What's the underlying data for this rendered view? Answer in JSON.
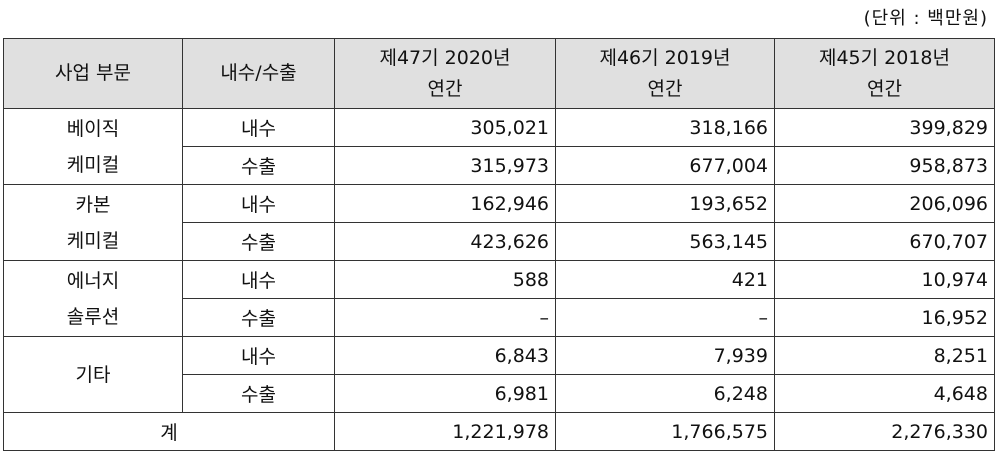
{
  "unit_note": "(단위 : 백만원)",
  "headers": {
    "segment": "사업 부문",
    "flow": "내수/수출",
    "periods": [
      {
        "line1": "제47기 2020년",
        "line2": "연간"
      },
      {
        "line1": "제46기 2019년",
        "line2": "연간"
      },
      {
        "line1": "제45기 2018년",
        "line2": "연간"
      }
    ]
  },
  "groups": [
    {
      "segment": "베이직\n케미컬",
      "rows": [
        {
          "flow": "내수",
          "values": [
            "305,021",
            "318,166",
            "399,829"
          ]
        },
        {
          "flow": "수출",
          "values": [
            "315,973",
            "677,004",
            "958,873"
          ]
        }
      ]
    },
    {
      "segment": "카본\n케미컬",
      "rows": [
        {
          "flow": "내수",
          "values": [
            "162,946",
            "193,652",
            "206,096"
          ]
        },
        {
          "flow": "수출",
          "values": [
            "423,626",
            "563,145",
            "670,707"
          ]
        }
      ]
    },
    {
      "segment": "에너지\n솔루션",
      "rows": [
        {
          "flow": "내수",
          "values": [
            "588",
            "421",
            "10,974"
          ]
        },
        {
          "flow": "수출",
          "values": [
            "–",
            "–",
            "16,952"
          ]
        }
      ]
    },
    {
      "segment": "기타",
      "rows": [
        {
          "flow": "내수",
          "values": [
            "6,843",
            "7,939",
            "8,251"
          ]
        },
        {
          "flow": "수출",
          "values": [
            "6,981",
            "6,248",
            "4,648"
          ]
        }
      ]
    }
  ],
  "total": {
    "label": "계",
    "values": [
      "1,221,978",
      "1,766,575",
      "2,276,330"
    ]
  }
}
